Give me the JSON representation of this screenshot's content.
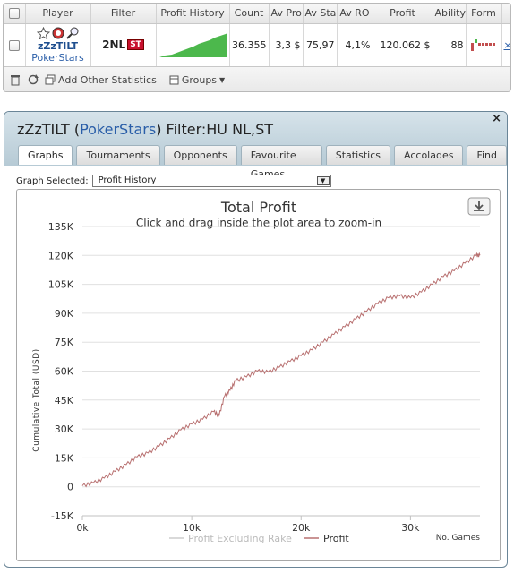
{
  "table": {
    "headers": [
      "Player",
      "Filter",
      "Profit History",
      "Count",
      "Av Pro",
      "Av Sta",
      "Av RO",
      "Profit",
      "Ability",
      "Form"
    ],
    "row": {
      "player_name": "zZzTILT",
      "player_site": "PokerStars",
      "filter_nl": "2NL",
      "filter_st": "ST",
      "count": "36.355",
      "av_pro": "3,3 $",
      "av_sta": "75,97",
      "av_roi": "4,1%",
      "profit": "120.062 $",
      "ability": "88",
      "extra": "×"
    }
  },
  "toolbar": {
    "add_stats": "Add Other Statistics",
    "groups": "Groups"
  },
  "window": {
    "title_player": "zZzTILT (",
    "title_site": "PokerStars",
    "title_filter": ") Filter:HU NL,ST",
    "close": "×",
    "tabs": [
      "Graphs",
      "Tournaments",
      "Opponents",
      "Favourite Games",
      "Statistics",
      "Accolades",
      "Find"
    ],
    "active_tab": 0,
    "graph_selected_label": "Graph Selected:",
    "graph_selected_value": "Profit History"
  },
  "chart_data": {
    "type": "line",
    "title": "Total Profit",
    "subtitle": "Click and drag inside the plot area to zoom-in",
    "xlabel": "No. Games",
    "ylabel": "Cumulative Total (USD)",
    "xlim": [
      0,
      36355
    ],
    "ylim": [
      -15000,
      135000
    ],
    "x_ticks": [
      "0k",
      "10k",
      "20k",
      "30k"
    ],
    "y_ticks": [
      "-15K",
      "0",
      "15K",
      "30K",
      "45K",
      "60K",
      "75K",
      "90K",
      "105K",
      "120K",
      "135K"
    ],
    "legend": [
      "Profit Excluding Rake",
      "Profit"
    ],
    "series": [
      {
        "name": "Profit",
        "color": "#b87070",
        "x": [
          0,
          1000,
          2000,
          3000,
          4000,
          5000,
          6000,
          7000,
          8000,
          9000,
          10000,
          11000,
          12000,
          12500,
          13000,
          13500,
          14000,
          15000,
          16000,
          17000,
          18000,
          19000,
          20000,
          21000,
          22000,
          23000,
          24000,
          25000,
          26000,
          27000,
          28000,
          29000,
          30000,
          31000,
          32000,
          33000,
          34000,
          35000,
          36000,
          36355
        ],
        "y": [
          500,
          2000,
          4500,
          8000,
          11500,
          15500,
          17500,
          21000,
          25000,
          29500,
          32500,
          35000,
          39000,
          37000,
          47000,
          50000,
          55000,
          57000,
          60000,
          59500,
          62000,
          65000,
          68000,
          71000,
          75000,
          79000,
          83000,
          87000,
          91000,
          95000,
          98000,
          99000,
          98000,
          101000,
          105000,
          109000,
          112000,
          116000,
          120000,
          120062
        ]
      },
      {
        "name": "Profit Excluding Rake",
        "color": "#cccccc",
        "x": [],
        "y": []
      }
    ]
  },
  "colors": {
    "accent": "#2a5ea8",
    "sparkline": "#4cb84c",
    "profit_line": "#b87070"
  }
}
